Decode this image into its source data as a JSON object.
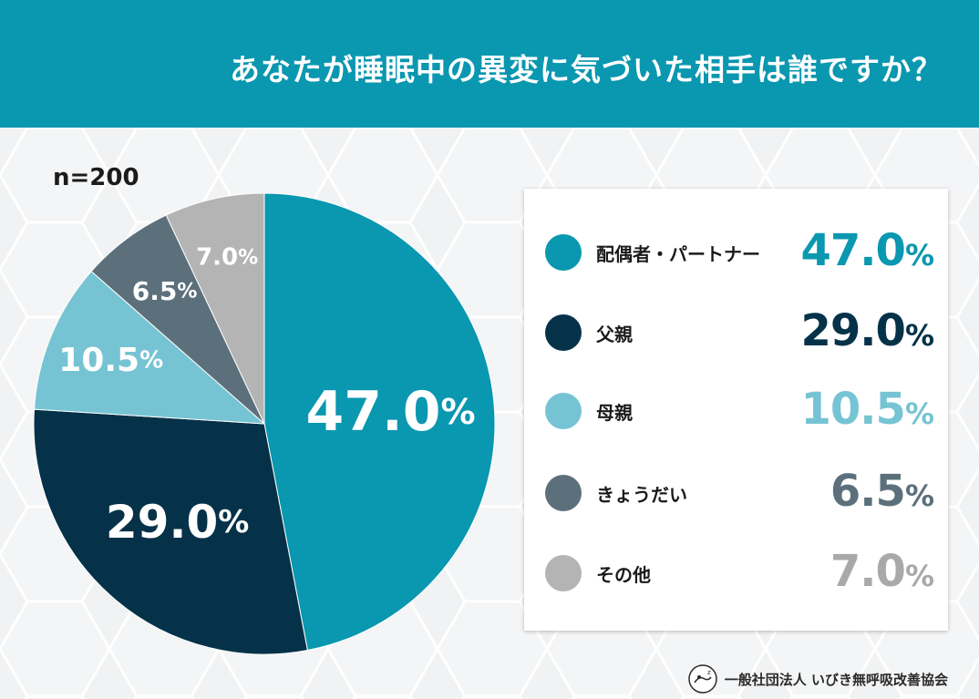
{
  "header": {
    "title": "あなたが睡眠中の異変に気づいた相手は誰ですか？"
  },
  "sample": "n=200",
  "footer": {
    "organization": "一般社団法人 いびき無呼吸改善協会"
  },
  "chart_data": {
    "type": "pie",
    "title": "あなたが睡眠中の異変に気づいた相手は誰ですか？",
    "unit": "%",
    "categories": [
      "配偶者・パートナー",
      "父親",
      "母親",
      "きょうだい",
      "その他"
    ],
    "values": [
      47.0,
      29.0,
      10.5,
      6.5,
      7.0
    ],
    "labels": [
      "47.0",
      "29.0",
      "10.5",
      "6.5",
      "7.0"
    ],
    "colors": [
      "#0a97b0",
      "#053249",
      "#76c4d3",
      "#5c707c",
      "#b4b4b4"
    ],
    "legend_value_colors": [
      "#0a97b0",
      "#053249",
      "#76c4d3",
      "#5c707c",
      "#a9a9a9"
    ],
    "legend": "right"
  }
}
